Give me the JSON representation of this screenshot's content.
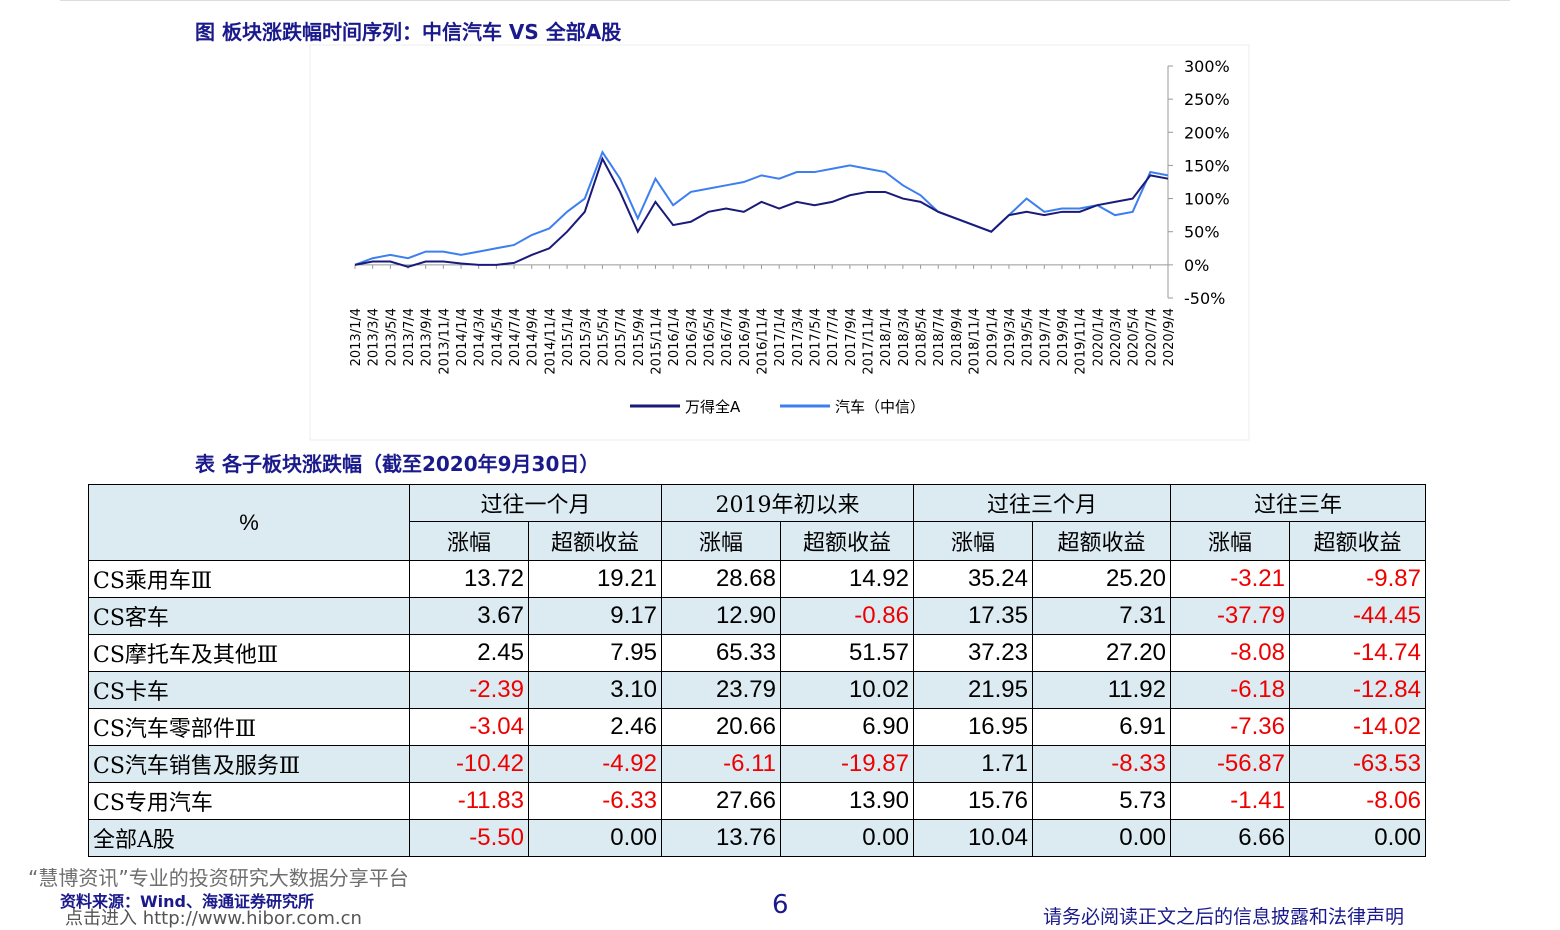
{
  "figure": {
    "title": "图 板块涨跌幅时间序列：中信汽车 VS 全部A股"
  },
  "chart_data": {
    "type": "line",
    "x": [
      "2013/1/4",
      "2013/3/4",
      "2013/5/4",
      "2013/7/4",
      "2013/9/4",
      "2013/11/4",
      "2014/1/4",
      "2014/3/4",
      "2014/5/4",
      "2014/7/4",
      "2014/9/4",
      "2014/11/4",
      "2015/1/4",
      "2015/3/4",
      "2015/5/4",
      "2015/7/4",
      "2015/9/4",
      "2015/11/4",
      "2016/1/4",
      "2016/3/4",
      "2016/5/4",
      "2016/7/4",
      "2016/9/4",
      "2016/11/4",
      "2017/1/4",
      "2017/3/4",
      "2017/5/4",
      "2017/7/4",
      "2017/9/4",
      "2017/11/4",
      "2018/1/4",
      "2018/3/4",
      "2018/5/4",
      "2018/7/4",
      "2018/9/4",
      "2018/11/4",
      "2019/1/4",
      "2019/3/4",
      "2019/5/4",
      "2019/7/4",
      "2019/9/4",
      "2019/11/4",
      "2020/1/4",
      "2020/3/4",
      "2020/5/4",
      "2020/7/4",
      "2020/9/4"
    ],
    "series": [
      {
        "name": "万得全A",
        "color": "#1a1a7a",
        "values": [
          0,
          5,
          5,
          -3,
          5,
          5,
          2,
          0,
          0,
          3,
          15,
          25,
          50,
          80,
          160,
          110,
          50,
          95,
          60,
          65,
          80,
          85,
          80,
          95,
          85,
          95,
          90,
          95,
          105,
          110,
          110,
          100,
          95,
          80,
          70,
          60,
          50,
          75,
          80,
          75,
          80,
          80,
          90,
          95,
          100,
          135,
          130
        ]
      },
      {
        "name": "汽车（中信）",
        "color": "#3d7ff0",
        "values": [
          0,
          10,
          15,
          10,
          20,
          20,
          15,
          20,
          25,
          30,
          45,
          55,
          80,
          100,
          170,
          130,
          70,
          130,
          90,
          110,
          115,
          120,
          125,
          135,
          130,
          140,
          140,
          145,
          150,
          145,
          140,
          120,
          105,
          80,
          70,
          60,
          50,
          75,
          100,
          80,
          85,
          85,
          90,
          75,
          80,
          140,
          135
        ]
      }
    ],
    "ylim": [
      -50,
      300
    ],
    "yticks": [
      {
        "value": -50,
        "label": "-50%"
      },
      {
        "value": 0,
        "label": "0%"
      },
      {
        "value": 50,
        "label": "50%"
      },
      {
        "value": 100,
        "label": "100%"
      },
      {
        "value": 150,
        "label": "150%"
      },
      {
        "value": 200,
        "label": "200%"
      },
      {
        "value": 250,
        "label": "250%"
      },
      {
        "value": 300,
        "label": "300%"
      }
    ],
    "legend": "bottom"
  },
  "table": {
    "title": "表 各子板块涨跌幅（截至2020年9月30日）",
    "corner": "%",
    "groups": [
      "过往一个月",
      "2019年初以来",
      "过往三个月",
      "过往三年"
    ],
    "subheaders": [
      "涨幅",
      "超额收益",
      "涨幅",
      "超额收益",
      "涨幅",
      "超额收益",
      "涨幅",
      "超额收益"
    ],
    "rows": [
      [
        "CS乘用车Ⅲ",
        "13.72",
        "19.21",
        "28.68",
        "14.92",
        "35.24",
        "25.20",
        "-3.21",
        "-9.87"
      ],
      [
        "CS客车",
        "3.67",
        "9.17",
        "12.90",
        "-0.86",
        "17.35",
        "7.31",
        "-37.79",
        "-44.45"
      ],
      [
        "CS摩托车及其他Ⅲ",
        "2.45",
        "7.95",
        "65.33",
        "51.57",
        "37.23",
        "27.20",
        "-8.08",
        "-14.74"
      ],
      [
        "CS卡车",
        "-2.39",
        "3.10",
        "23.79",
        "10.02",
        "21.95",
        "11.92",
        "-6.18",
        "-12.84"
      ],
      [
        "CS汽车零部件Ⅲ",
        "-3.04",
        "2.46",
        "20.66",
        "6.90",
        "16.95",
        "6.91",
        "-7.36",
        "-14.02"
      ],
      [
        "CS汽车销售及服务Ⅲ",
        "-10.42",
        "-4.92",
        "-6.11",
        "-19.87",
        "1.71",
        "-8.33",
        "-56.87",
        "-63.53"
      ],
      [
        "CS专用汽车",
        "-11.83",
        "-6.33",
        "27.66",
        "13.90",
        "15.76",
        "5.73",
        "-1.41",
        "-8.06"
      ],
      [
        "全部A股",
        "-5.50",
        "0.00",
        "13.76",
        "0.00",
        "10.04",
        "0.00",
        "6.66",
        "0.00"
      ]
    ]
  },
  "footer": {
    "source": "资料来源：Wind、海通证券研究所",
    "page": "6",
    "disclaimer": "请务必阅读正文之后的信息披露和法律声明",
    "watermark": "“慧博资讯”专业的投资研究大数据分享平台",
    "link": "点击进入 http://www.hibor.com.cn"
  }
}
